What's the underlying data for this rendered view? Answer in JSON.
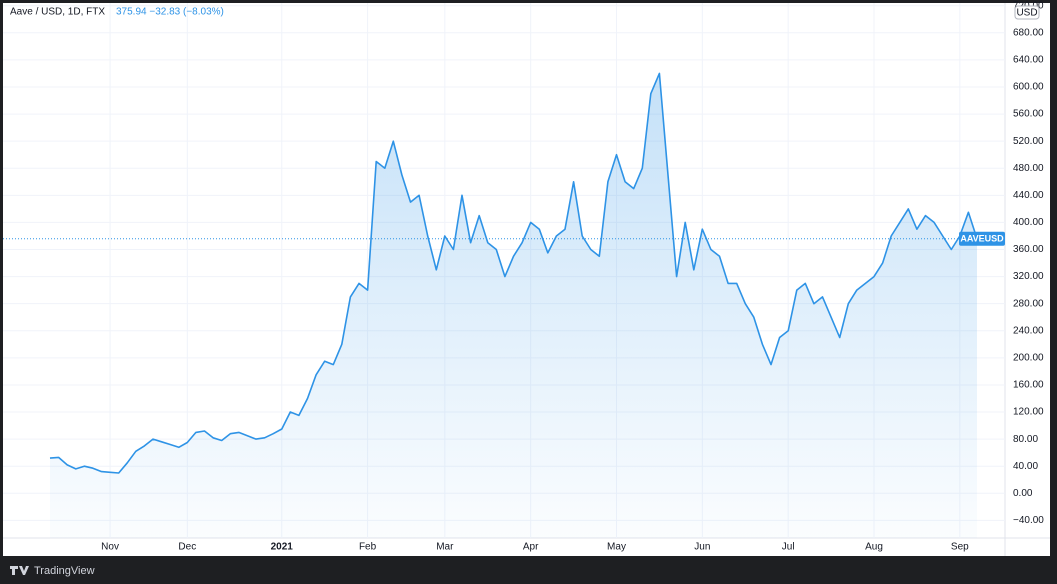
{
  "header": {
    "symbol": "Aave / USD, 1D, FTX",
    "quote": "375.94 −32.83 (−8.03%)"
  },
  "footer": {
    "brand": "TradingView"
  },
  "chart_data": {
    "type": "area",
    "unit": "USD",
    "series_label": "AAVEUSD",
    "color": "#2e93e6",
    "grid": true,
    "categories": [
      null,
      null,
      null,
      null,
      null,
      null,
      null,
      "Nov",
      null,
      null,
      null,
      null,
      null,
      null,
      null,
      null,
      "Dec",
      null,
      null,
      null,
      null,
      null,
      null,
      null,
      null,
      null,
      null,
      "2021",
      null,
      null,
      null,
      null,
      null,
      null,
      null,
      null,
      null,
      "Feb",
      null,
      null,
      null,
      null,
      null,
      null,
      null,
      null,
      "Mar",
      null,
      null,
      null,
      null,
      null,
      null,
      null,
      null,
      null,
      "Apr",
      null,
      null,
      null,
      null,
      null,
      null,
      null,
      null,
      null,
      "May",
      null,
      null,
      null,
      null,
      null,
      null,
      null,
      null,
      null,
      "Jun",
      null,
      null,
      null,
      null,
      null,
      null,
      null,
      null,
      null,
      "Jul",
      null,
      null,
      null,
      null,
      null,
      null,
      null,
      null,
      null,
      "Aug",
      null,
      null,
      null,
      null,
      null,
      null,
      null,
      null,
      null,
      "Sep",
      null,
      null
    ],
    "values": [
      52,
      53,
      42,
      36,
      40,
      37,
      32,
      31,
      30,
      45,
      62,
      70,
      80,
      76,
      72,
      68,
      75,
      90,
      92,
      82,
      78,
      88,
      90,
      85,
      80,
      82,
      88,
      95,
      120,
      115,
      140,
      175,
      195,
      190,
      220,
      290,
      310,
      300,
      490,
      480,
      520,
      470,
      430,
      440,
      380,
      330,
      380,
      360,
      440,
      370,
      410,
      370,
      360,
      320,
      350,
      370,
      400,
      390,
      355,
      380,
      390,
      460,
      380,
      360,
      350,
      460,
      500,
      460,
      450,
      480,
      590,
      620,
      470,
      320,
      400,
      330,
      390,
      360,
      350,
      310,
      310,
      280,
      260,
      220,
      190,
      230,
      240,
      300,
      310,
      280,
      290,
      260,
      230,
      280,
      300,
      310,
      320,
      340,
      380,
      400,
      420,
      390,
      410,
      400,
      380,
      360,
      380,
      415,
      375.94
    ],
    "ylim": [
      -66,
      724
    ],
    "yticks": [
      {
        "value": -40,
        "label": "−40.00"
      },
      {
        "value": 0,
        "label": "0.00"
      },
      {
        "value": 40,
        "label": "40.00"
      },
      {
        "value": 80,
        "label": "80.00"
      },
      {
        "value": 120,
        "label": "120.00"
      },
      {
        "value": 160,
        "label": "160.00"
      },
      {
        "value": 200,
        "label": "200.00"
      },
      {
        "value": 240,
        "label": "240.00"
      },
      {
        "value": 280,
        "label": "280.00"
      },
      {
        "value": 320,
        "label": "320.00"
      },
      {
        "value": 360,
        "label": "360.00"
      },
      {
        "value": 400,
        "label": "400.00"
      },
      {
        "value": 440,
        "label": "440.00"
      },
      {
        "value": 480,
        "label": "480.00"
      },
      {
        "value": 520,
        "label": "520.00"
      },
      {
        "value": 560,
        "label": "560.00"
      },
      {
        "value": 600,
        "label": "600.00"
      },
      {
        "value": 640,
        "label": "640.00"
      },
      {
        "value": 680,
        "label": "680.00"
      },
      {
        "value": 720,
        "label": "720.00"
      }
    ]
  }
}
